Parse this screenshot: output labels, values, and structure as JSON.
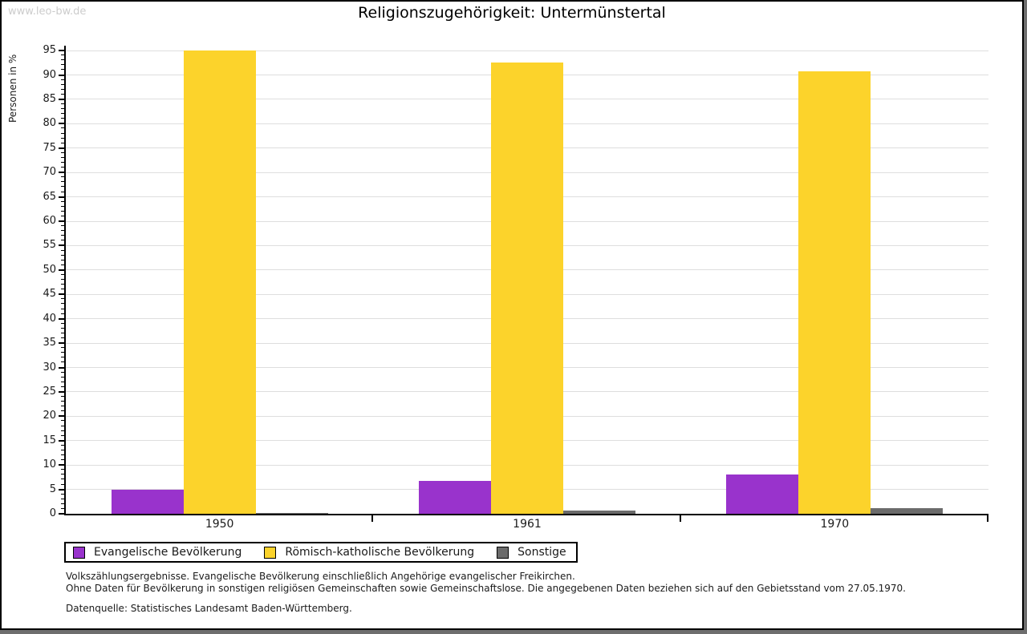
{
  "page": {
    "watermark": "www.leo-bw.de",
    "title": "Religionszugehörigkeit: Untermünstertal",
    "background_color": "#6E6E6E",
    "page_color": "#FFFFFF"
  },
  "chart_data": {
    "type": "bar",
    "title": "Religionszugehörigkeit: Untermünstertal",
    "xlabel": "",
    "ylabel": "Personen in %",
    "categories": [
      "1950",
      "1961",
      "1970"
    ],
    "series": [
      {
        "name": "Evangelische Bevölkerung",
        "color": "#9933CC",
        "values": [
          4.9,
          6.8,
          8.1
        ]
      },
      {
        "name": "Römisch-katholische Bevölkerung",
        "color": "#FCD32B",
        "values": [
          95.0,
          92.5,
          90.7
        ]
      },
      {
        "name": "Sonstige",
        "color": "#6B6B6B",
        "values": [
          0.15,
          0.7,
          1.2
        ]
      }
    ],
    "ylim": [
      0,
      96
    ],
    "ytick_labels": [
      0,
      5,
      10,
      15,
      20,
      25,
      30,
      35,
      40,
      45,
      50,
      55,
      60,
      65,
      70,
      75,
      80,
      85,
      90,
      95
    ],
    "ytick_step_major": 5,
    "ytick_step_minor": 1,
    "grid": true,
    "gridline_color": "#DEDEDE",
    "legend_position": "bottom-left"
  },
  "footer": {
    "note_line1": "Volkszählungsergebnisse. Evangelische Bevölkerung einschließlich Angehörige evangelischer Freikirchen.",
    "note_line2": "Ohne Daten für Bevölkerung in sonstigen religiösen Gemeinschaften sowie Gemeinschaftslose. Die angegebenen Daten beziehen sich auf den Gebietsstand vom 27.05.1970.",
    "source": "Datenquelle: Statistisches Landesamt Baden-Württemberg."
  }
}
